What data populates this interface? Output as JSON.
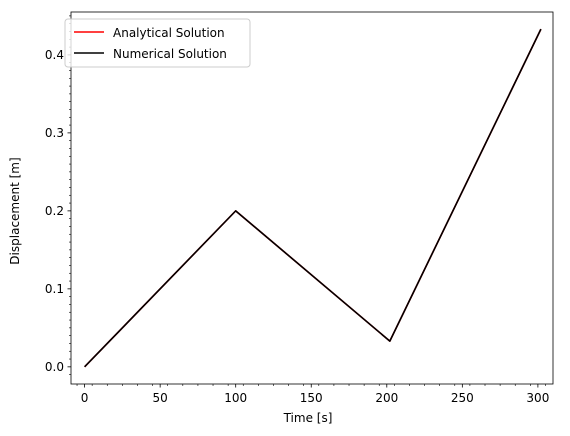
{
  "chart_data": {
    "type": "line",
    "xlabel": "Time [s]",
    "ylabel": "Displacement [m]",
    "xlim": [
      -9,
      310
    ],
    "ylim": [
      -0.022,
      0.455
    ],
    "xticks": [
      0,
      50,
      100,
      150,
      200,
      250,
      300
    ],
    "yticks": [
      0.0,
      0.1,
      0.2,
      0.3,
      0.4
    ],
    "xtick_labels": [
      "0",
      "50",
      "100",
      "150",
      "200",
      "250",
      "300"
    ],
    "ytick_labels": [
      "0.0",
      "0.1",
      "0.2",
      "0.3",
      "0.4"
    ],
    "legend_position": "upper-left",
    "grid": false,
    "series": [
      {
        "name": "Analytical Solution",
        "color": "#ff0000",
        "x": [
          0,
          100,
          202,
          302
        ],
        "y": [
          0.0,
          0.2,
          0.033,
          0.433
        ]
      },
      {
        "name": "Numerical Solution",
        "color": "#000000",
        "x": [
          0,
          100,
          202,
          302
        ],
        "y": [
          0.0,
          0.2,
          0.033,
          0.433
        ]
      }
    ]
  }
}
